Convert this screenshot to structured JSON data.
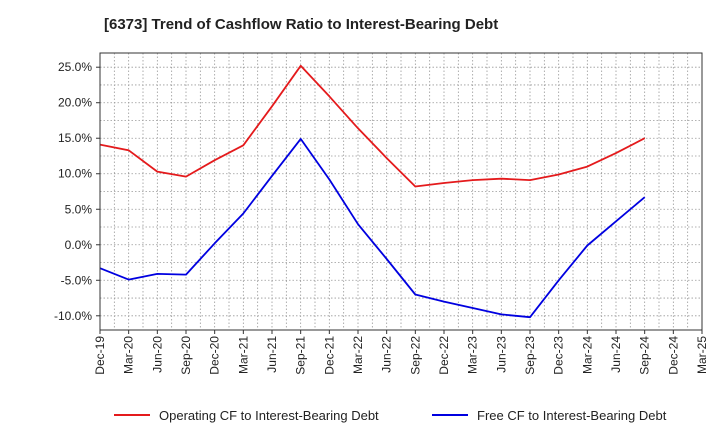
{
  "chart_data": {
    "type": "line",
    "title": "[6373]  Trend of Cashflow Ratio to Interest-Bearing Debt",
    "xlabel": "",
    "ylabel": "",
    "categories": [
      "Dec-19",
      "Mar-20",
      "Jun-20",
      "Sep-20",
      "Dec-20",
      "Mar-21",
      "Jun-21",
      "Sep-21",
      "Dec-21",
      "Mar-22",
      "Jun-22",
      "Sep-22",
      "Dec-22",
      "Mar-23",
      "Jun-23",
      "Sep-23",
      "Dec-23",
      "Mar-24",
      "Jun-24",
      "Sep-24",
      "Dec-24",
      "Mar-25"
    ],
    "ylim": [
      -12,
      27
    ],
    "yticks": [
      -10,
      -5,
      0,
      5,
      10,
      15,
      20,
      25
    ],
    "ytick_labels": [
      "-10.0%",
      "-5.0%",
      "0.0%",
      "5.0%",
      "10.0%",
      "15.0%",
      "20.0%",
      "25.0%"
    ],
    "grid": true,
    "legend_position": "bottom",
    "series": [
      {
        "name": "Operating CF to Interest-Bearing Debt",
        "color": "#e41a1c",
        "values": [
          14.1,
          13.3,
          10.3,
          9.6,
          11.9,
          14.0,
          19.5,
          25.2,
          20.9,
          16.4,
          12.2,
          8.2,
          8.7,
          9.1,
          9.3,
          9.1,
          9.9,
          11.0,
          12.9,
          15.0,
          null,
          null
        ]
      },
      {
        "name": "Free CF to Interest-Bearing Debt",
        "color": "#0000e0",
        "values": [
          -3.3,
          -4.9,
          -4.1,
          -4.2,
          0.2,
          4.4,
          9.7,
          14.9,
          9.2,
          2.9,
          -2.0,
          -7.0,
          -8.0,
          -8.9,
          -9.8,
          -10.2,
          -5.0,
          -0.1,
          3.3,
          6.7,
          null,
          null
        ]
      }
    ]
  }
}
